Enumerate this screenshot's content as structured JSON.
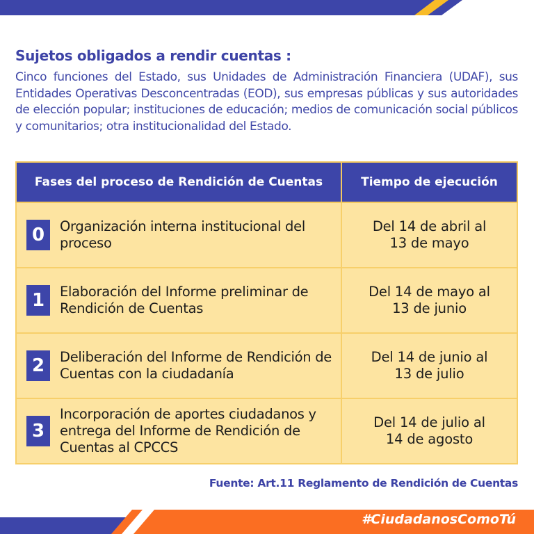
{
  "colors": {
    "brand_blue": "#3d45a9",
    "accent_yellow": "#f8bb27",
    "accent_orange": "#fb6e22",
    "row_fill": "#fde4a1"
  },
  "title": "Sujetos obligados a rendir cuentas :",
  "intro": "Cinco funciones del Estado, sus Unidades de Administración Financiera (UDAF), sus Entidades Operativas Desconcentradas (EOD), sus empresas públicas y sus autoridades de elección popular; instituciones de educación; medios de comunicación social públicos y comunitarios; otra institucionalidad del Estado.",
  "table": {
    "headers": [
      "Fases del proceso de Rendición de Cuentas",
      "Tiempo de ejecución"
    ],
    "rows": [
      {
        "num": "0",
        "phase": "Organización interna institucional del proceso",
        "time": "Del 14 de abril al 13 de mayo"
      },
      {
        "num": "1",
        "phase": "Elaboración del Informe preliminar de Rendición de Cuentas",
        "time": "Del 14 de mayo al 13 de junio"
      },
      {
        "num": "2",
        "phase": "Deliberación del Informe de Rendición de Cuentas con la ciudadanía",
        "time": "Del 14 de junio al 13 de julio"
      },
      {
        "num": "3",
        "phase": "Incorporación de aportes ciudadanos y entrega del Informe de Rendición de Cuentas al CPCCS",
        "time": "Del 14 de julio al 14 de agosto"
      }
    ]
  },
  "source": "Fuente: Art.11 Reglamento de Rendición de Cuentas",
  "hashtag": "#CiudadanosComoTú"
}
